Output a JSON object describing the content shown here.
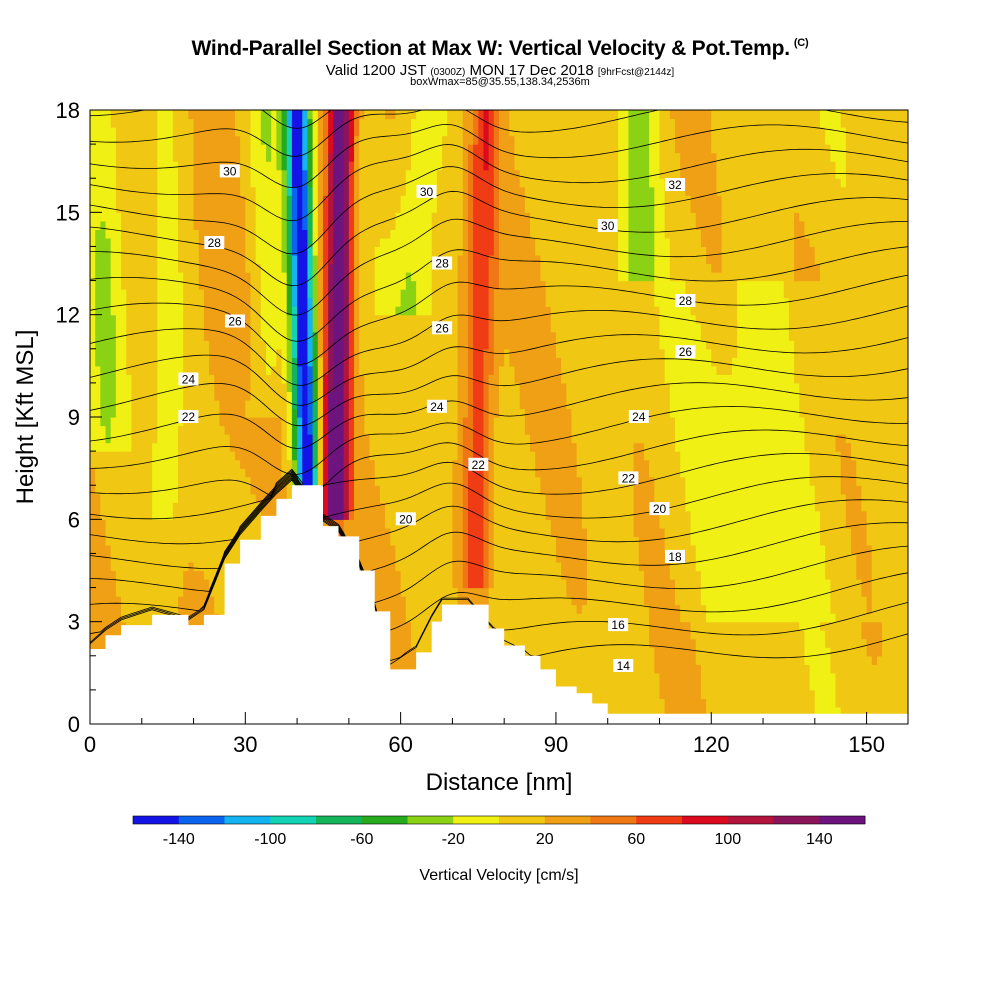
{
  "title": {
    "main": "Wind-Parallel Section at Max W: Vertical Velocity & Pot.Temp.",
    "copyright": "(C)",
    "valid_prefix": "Valid 1200 JST",
    "valid_z": "(0300Z)",
    "valid_date": "MON 17 Dec 2018",
    "forecast": "[9hrFcst@2144z]",
    "info": "boxWmax=85@35.55,138.34,2536m"
  },
  "chart_data": {
    "type": "heatmap",
    "xlabel": "Distance [nm]",
    "ylabel": "Height [Kft MSL]",
    "xlim": [
      0,
      158
    ],
    "ylim": [
      0,
      18
    ],
    "x_ticks": [
      "0",
      "30",
      "60",
      "90",
      "120",
      "150"
    ],
    "x_tick_values": [
      0,
      30,
      60,
      90,
      120,
      150
    ],
    "y_ticks": [
      "0",
      "3",
      "6",
      "9",
      "12",
      "15",
      "18"
    ],
    "y_tick_values": [
      0,
      3,
      6,
      9,
      12,
      15,
      18
    ],
    "colorbar": {
      "title": "Vertical Velocity [cm/s]",
      "tick_labels": [
        "-140",
        "-100",
        "-60",
        "-20",
        "20",
        "60",
        "100",
        "140"
      ],
      "tick_values": [
        -140,
        -100,
        -60,
        -20,
        20,
        60,
        100,
        140
      ],
      "range": [
        -160,
        160
      ],
      "step": 20,
      "colors": [
        "#1414e6",
        "#0a64f0",
        "#14b4f0",
        "#14d2b4",
        "#14b45a",
        "#28aa1e",
        "#8cd214",
        "#f0f014",
        "#f0c814",
        "#f0a014",
        "#f07814",
        "#f03c14",
        "#dc0a1e",
        "#b4143c",
        "#8c145a",
        "#6e147e"
      ]
    },
    "theta_contour_labels": [
      {
        "label": "30",
        "x": 27,
        "y": 16.2
      },
      {
        "label": "28",
        "x": 24,
        "y": 14.1
      },
      {
        "label": "26",
        "x": 28,
        "y": 11.8
      },
      {
        "label": "24",
        "x": 19,
        "y": 10.1
      },
      {
        "label": "22",
        "x": 19,
        "y": 9.0
      },
      {
        "label": "30",
        "x": 65,
        "y": 15.6
      },
      {
        "label": "28",
        "x": 68,
        "y": 13.5
      },
      {
        "label": "26",
        "x": 68,
        "y": 11.6
      },
      {
        "label": "24",
        "x": 67,
        "y": 9.3
      },
      {
        "label": "22",
        "x": 75,
        "y": 7.6
      },
      {
        "label": "20",
        "x": 61,
        "y": 6.0
      },
      {
        "label": "30",
        "x": 100,
        "y": 14.6
      },
      {
        "label": "32",
        "x": 113,
        "y": 15.8
      },
      {
        "label": "28",
        "x": 115,
        "y": 12.4
      },
      {
        "label": "26",
        "x": 115,
        "y": 10.9
      },
      {
        "label": "24",
        "x": 106,
        "y": 9.0
      },
      {
        "label": "22",
        "x": 104,
        "y": 7.2
      },
      {
        "label": "20",
        "x": 110,
        "y": 6.3
      },
      {
        "label": "18",
        "x": 113,
        "y": 4.9
      },
      {
        "label": "16",
        "x": 102,
        "y": 2.9
      },
      {
        "label": "14",
        "x": 103,
        "y": 1.7
      }
    ],
    "terrain_kft": [
      [
        0,
        2.2
      ],
      [
        3,
        2.6
      ],
      [
        6,
        2.9
      ],
      [
        12,
        3.2
      ],
      [
        19,
        2.9
      ],
      [
        22,
        3.2
      ],
      [
        26,
        4.7
      ],
      [
        29,
        5.4
      ],
      [
        33,
        6.1
      ],
      [
        36,
        6.6
      ],
      [
        39,
        7.0
      ],
      [
        45,
        5.8
      ],
      [
        48,
        5.5
      ],
      [
        52,
        4.5
      ],
      [
        55,
        3.3
      ],
      [
        58,
        1.6
      ],
      [
        63,
        2.1
      ],
      [
        66,
        3.0
      ],
      [
        68,
        3.5
      ],
      [
        73,
        3.5
      ],
      [
        77,
        2.8
      ],
      [
        80,
        2.3
      ],
      [
        84,
        2.0
      ],
      [
        87,
        1.6
      ],
      [
        90,
        1.1
      ],
      [
        94,
        0.9
      ],
      [
        97,
        0.6
      ],
      [
        100,
        0.3
      ],
      [
        158,
        0.3
      ]
    ]
  }
}
